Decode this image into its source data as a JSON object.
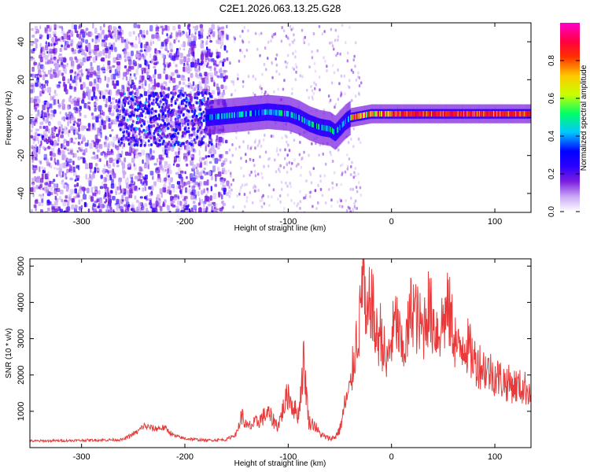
{
  "title": "C2E1.2026.063.13.25.G28",
  "colorbar": {
    "label": "Normalized spectral amplitude",
    "ticks": [
      0.0,
      0.2,
      0.4,
      0.6,
      0.8
    ],
    "tick_labels": [
      "0.0",
      "0.2",
      "0.4",
      "0.6",
      "0.8"
    ],
    "range": [
      0,
      1
    ],
    "colors": [
      "#ffffff",
      "#c9a7f5",
      "#7b1fe0",
      "#2b00ff",
      "#0000ff",
      "#00c8ff",
      "#00ff66",
      "#c8ff00",
      "#ffc800",
      "#ff3000",
      "#ff0040",
      "#ff00cc"
    ]
  },
  "chart_data": [
    {
      "type": "heatmap",
      "title": "C2E1.2026.063.13.25.G28",
      "xlabel": "Height of straight line (km)",
      "ylabel": "Frequency (Hz)",
      "xlim": [
        -350,
        135
      ],
      "ylim": [
        -50,
        50
      ],
      "xticks": [
        -300,
        -200,
        -100,
        0,
        100
      ],
      "xtick_labels": [
        "-300",
        "-200",
        "-100",
        "0",
        "100"
      ],
      "yticks": [
        -40,
        -20,
        0,
        20,
        40
      ],
      "ytick_labels": [
        "-40",
        "-20",
        "0",
        "20",
        "40"
      ],
      "ridge": {
        "x": [
          -180,
          -160,
          -140,
          -120,
          -100,
          -90,
          -80,
          -70,
          -60,
          -55,
          -50,
          -45,
          -40,
          -30,
          -20,
          -10,
          0,
          20,
          40,
          60,
          80,
          100,
          135
        ],
        "frequency": [
          0,
          1,
          2,
          3,
          2,
          0,
          -3,
          -5,
          -6,
          -8,
          -5,
          -2,
          0,
          1,
          2,
          2,
          2,
          2,
          2,
          2,
          2,
          2,
          2
        ]
      },
      "noise_region": [
        -350,
        -160
      ],
      "colorscale": "normalized spectral amplitude 0-1"
    },
    {
      "type": "line",
      "xlabel": "Height of straight line (km)",
      "ylabel": "SNR (10 * v/v)",
      "xlim": [
        -350,
        135
      ],
      "ylim": [
        0,
        5200
      ],
      "xticks": [
        -300,
        -200,
        -100,
        0,
        100
      ],
      "xtick_labels": [
        "-300",
        "-200",
        "-100",
        "0",
        "100"
      ],
      "yticks": [
        1000,
        2000,
        3000,
        4000,
        5000
      ],
      "ytick_labels": [
        "1000",
        "2000",
        "3000",
        "4000",
        "5000"
      ],
      "color": "#e83a3a",
      "series": [
        {
          "name": "SNR",
          "x": [
            -350,
            -300,
            -260,
            -245,
            -240,
            -230,
            -220,
            -210,
            -200,
            -180,
            -160,
            -150,
            -145,
            -140,
            -130,
            -120,
            -110,
            -100,
            -95,
            -90,
            -85,
            -80,
            -75,
            -70,
            -65,
            -60,
            -55,
            -50,
            -45,
            -40,
            -35,
            -30,
            -28,
            -26,
            -25,
            -20,
            -15,
            -10,
            -5,
            0,
            5,
            10,
            15,
            20,
            25,
            30,
            35,
            40,
            45,
            50,
            55,
            60,
            65,
            70,
            80,
            90,
            100,
            110,
            120,
            135
          ],
          "y": [
            180,
            200,
            220,
            450,
            600,
            520,
            550,
            320,
            250,
            200,
            220,
            380,
            900,
            550,
            700,
            950,
            600,
            1500,
            1100,
            900,
            2400,
            700,
            650,
            400,
            300,
            250,
            280,
            500,
            1200,
            1600,
            2800,
            3600,
            5050,
            4200,
            3000,
            4200,
            3000,
            3200,
            2200,
            3000,
            3500,
            2600,
            3000,
            4000,
            3500,
            3200,
            3900,
            3500,
            3200,
            3500,
            3800,
            3200,
            2600,
            3000,
            2400,
            2200,
            2000,
            1800,
            1700,
            1600
          ]
        }
      ]
    }
  ]
}
